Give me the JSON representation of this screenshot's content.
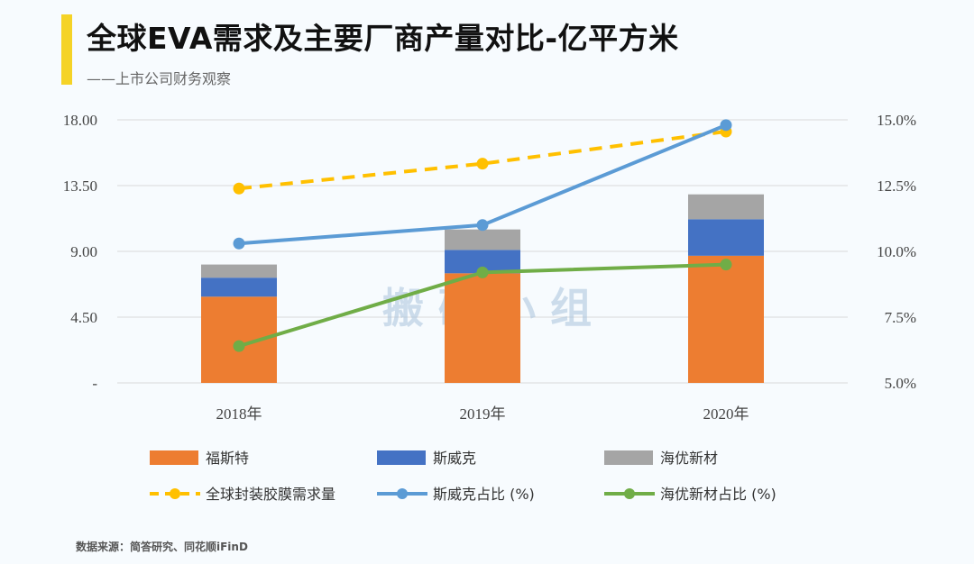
{
  "header": {
    "title": "全球EVA需求及主要厂商产量对比-亿平方米",
    "subtitle": "——上市公司财务观察"
  },
  "footer": {
    "source": "数据来源：简答研究、同花顺iFinD"
  },
  "watermark": "搬 砖 小 组",
  "chart_data": {
    "type": "bar",
    "title": "全球EVA需求及主要厂商产量对比-亿平方米",
    "categories": [
      "2018年",
      "2019年",
      "2020年"
    ],
    "left_axis": {
      "ylim": [
        0,
        18
      ],
      "ticks": [
        "-",
        "4.50",
        "9.00",
        "13.50",
        "18.00"
      ]
    },
    "right_axis": {
      "ylim": [
        5.0,
        15.0
      ],
      "ticks": [
        "5.0%",
        "7.5%",
        "10.0%",
        "12.5%",
        "15.0%"
      ]
    },
    "bar_series": [
      {
        "name": "福斯特",
        "color": "#ed7d31",
        "values": [
          5.9,
          7.5,
          8.7
        ]
      },
      {
        "name": "斯威克",
        "color": "#4472c4",
        "values": [
          1.3,
          1.6,
          2.5
        ]
      },
      {
        "name": "海优新材",
        "color": "#a5a5a5",
        "values": [
          0.9,
          1.4,
          1.7
        ]
      }
    ],
    "line_series": [
      {
        "name": "全球封装胶膜需求量",
        "axis": "left",
        "color": "#ffc000",
        "style": "dashed",
        "values": [
          13.3,
          15.0,
          17.2
        ]
      },
      {
        "name": "斯威克占比 (%)",
        "axis": "right",
        "color": "#5b9bd5",
        "style": "solid",
        "values": [
          10.3,
          11.0,
          14.8
        ]
      },
      {
        "name": "海优新材占比 (%)",
        "axis": "right",
        "color": "#70ad47",
        "style": "solid",
        "values": [
          6.4,
          9.2,
          9.5
        ]
      }
    ],
    "legend_position": "bottom"
  }
}
